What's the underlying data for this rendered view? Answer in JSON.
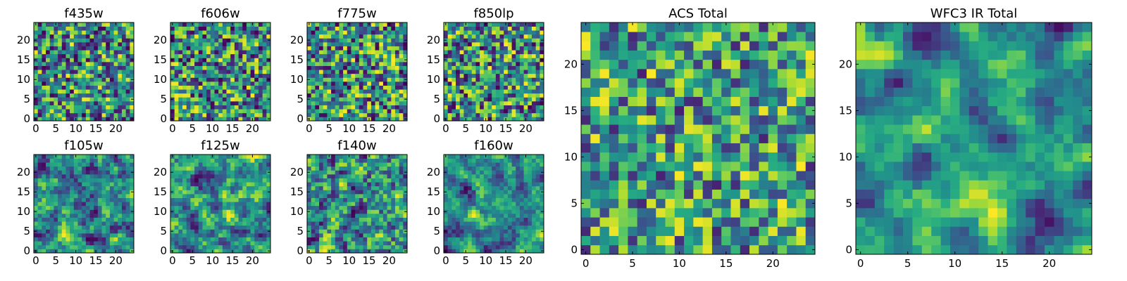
{
  "figure": {
    "description": "Grid of heatmap panels for astronomical filters"
  },
  "chart_data": [
    {
      "type": "heatmap",
      "title": "f435w",
      "xlim": [
        -0.5,
        24.5
      ],
      "ylim": [
        -0.5,
        24.5
      ],
      "xticks": [
        0,
        5,
        10,
        15,
        20
      ],
      "yticks": [
        0,
        5,
        10,
        15,
        20
      ],
      "colormap": "viridis",
      "grid_size": 25,
      "smooth": 0.0,
      "seed": 101
    },
    {
      "type": "heatmap",
      "title": "f606w",
      "xlim": [
        -0.5,
        24.5
      ],
      "ylim": [
        -0.5,
        24.5
      ],
      "xticks": [
        0,
        5,
        10,
        15,
        20
      ],
      "yticks": [
        0,
        5,
        10,
        15,
        20
      ],
      "colormap": "viridis",
      "grid_size": 25,
      "smooth": 0.0,
      "seed": 202
    },
    {
      "type": "heatmap",
      "title": "f775w",
      "xlim": [
        -0.5,
        24.5
      ],
      "ylim": [
        -0.5,
        24.5
      ],
      "xticks": [
        0,
        5,
        10,
        15,
        20
      ],
      "yticks": [
        0,
        5,
        10,
        15,
        20
      ],
      "colormap": "viridis",
      "grid_size": 25,
      "smooth": 0.0,
      "seed": 303
    },
    {
      "type": "heatmap",
      "title": "f850lp",
      "xlim": [
        -0.5,
        24.5
      ],
      "ylim": [
        -0.5,
        24.5
      ],
      "xticks": [
        0,
        5,
        10,
        15,
        20
      ],
      "yticks": [
        0,
        5,
        10,
        15,
        20
      ],
      "colormap": "viridis",
      "grid_size": 25,
      "smooth": 0.0,
      "seed": 404
    },
    {
      "type": "heatmap",
      "title": "ACS Total",
      "xlim": [
        -0.5,
        24.5
      ],
      "ylim": [
        -0.5,
        24.5
      ],
      "xticks": [
        0,
        5,
        10,
        15,
        20
      ],
      "yticks": [
        0,
        5,
        10,
        15,
        20
      ],
      "colormap": "viridis",
      "grid_size": 25,
      "smooth": 0.0,
      "seed": 505,
      "bias": 0.12
    },
    {
      "type": "heatmap",
      "title": "WFC3 IR Total",
      "xlim": [
        -0.5,
        24.5
      ],
      "ylim": [
        -0.5,
        24.5
      ],
      "xticks": [
        0,
        5,
        10,
        15,
        20
      ],
      "yticks": [
        0,
        5,
        10,
        15,
        20
      ],
      "colormap": "viridis",
      "grid_size": 25,
      "smooth": 0.65,
      "seed": 606,
      "bias": 0.05
    },
    {
      "type": "heatmap",
      "title": "f105w",
      "xlim": [
        -0.5,
        24.5
      ],
      "ylim": [
        -0.5,
        24.5
      ],
      "xticks": [
        0,
        5,
        10,
        15,
        20
      ],
      "yticks": [
        0,
        5,
        10,
        15,
        20
      ],
      "colormap": "viridis",
      "grid_size": 25,
      "smooth": 0.45,
      "seed": 707
    },
    {
      "type": "heatmap",
      "title": "f125w",
      "xlim": [
        -0.5,
        24.5
      ],
      "ylim": [
        -0.5,
        24.5
      ],
      "xticks": [
        0,
        5,
        10,
        15,
        20
      ],
      "yticks": [
        0,
        5,
        10,
        15,
        20
      ],
      "colormap": "viridis",
      "grid_size": 25,
      "smooth": 0.5,
      "seed": 808
    },
    {
      "type": "heatmap",
      "title": "f140w",
      "xlim": [
        -0.5,
        24.5
      ],
      "ylim": [
        -0.5,
        24.5
      ],
      "xticks": [
        0,
        5,
        10,
        15,
        20
      ],
      "yticks": [
        0,
        5,
        10,
        15,
        20
      ],
      "colormap": "viridis",
      "grid_size": 25,
      "smooth": 0.35,
      "seed": 909
    },
    {
      "type": "heatmap",
      "title": "f160w",
      "xlim": [
        -0.5,
        24.5
      ],
      "ylim": [
        -0.5,
        24.5
      ],
      "xticks": [
        0,
        5,
        10,
        15,
        20
      ],
      "yticks": [
        0,
        5,
        10,
        15,
        20
      ],
      "colormap": "viridis",
      "grid_size": 25,
      "smooth": 0.55,
      "seed": 1001
    }
  ]
}
